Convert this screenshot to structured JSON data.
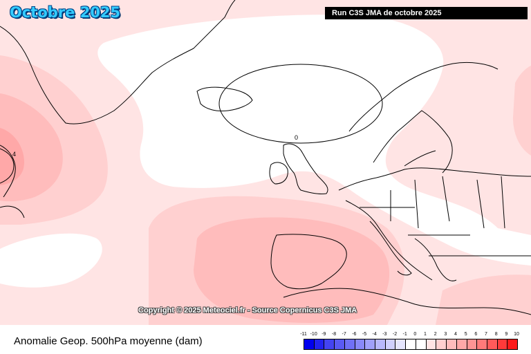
{
  "header": {
    "title": "Octobre 2025",
    "run_label": "Run C3S JMA de octobre 2025"
  },
  "map": {
    "copyright": "Copyright © 2025 Meteociel.fr - Source Copernicus C3S JMA",
    "contour_labels": [
      "0",
      "4"
    ]
  },
  "footer": {
    "parameter": "Anomalie Geop. 500hPa moyenne (dam)"
  },
  "legend": {
    "ticks": [
      "-11",
      "-10",
      "-9",
      "-8",
      "-7",
      "-6",
      "-5",
      "-4",
      "-3",
      "-2",
      "-1",
      "0",
      "1",
      "2",
      "3",
      "4",
      "5",
      "6",
      "7",
      "8",
      "9",
      "10"
    ],
    "colors": [
      "#0000ee",
      "#2222f0",
      "#4444f2",
      "#5a5af4",
      "#7070f6",
      "#8888f8",
      "#a0a0fa",
      "#b8b8fc",
      "#d0d0fd",
      "#e6e6fe",
      "#ffffff",
      "#ffffff",
      "#ffe4e4",
      "#ffd0d0",
      "#ffbcbc",
      "#ffa8a8",
      "#ff9494",
      "#ff7a7a",
      "#ff5a5a",
      "#ff3a3a",
      "#ff1a1a"
    ]
  },
  "colors": {
    "title_fill": "#33ccff",
    "anomaly_1": "#ffe4e4",
    "anomaly_2": "#ffd0d0",
    "anomaly_3": "#ffbcbc",
    "anomaly_4": "#ffa8a8"
  }
}
